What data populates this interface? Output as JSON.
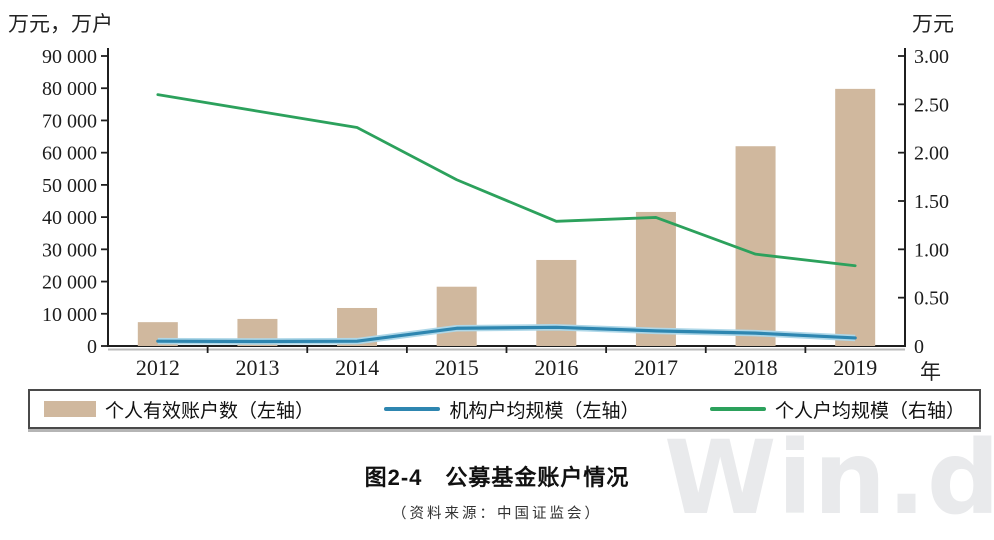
{
  "watermark": "Win.d",
  "caption": {
    "title": "图2-4　公募基金账户情况",
    "source": "（资料来源：中国证监会）"
  },
  "axes": {
    "left_unit_label": "万元，万户",
    "right_unit_label": "万元",
    "x_unit_label": "年",
    "left_ticks": [
      "90 000",
      "80 000",
      "70 000",
      "60 000",
      "50 000",
      "40 000",
      "30 000",
      "20 000",
      "10 000",
      "0"
    ],
    "right_ticks": [
      "3.00",
      "2.50",
      "2.00",
      "1.50",
      "1.00",
      "0.50",
      "0"
    ]
  },
  "legend": [
    {
      "label": "个人有效账户数（左轴）",
      "swatch": "bar",
      "color": "#d0b89e"
    },
    {
      "label": "机构户均规模（左轴）",
      "swatch": "line",
      "color": "#2e86b0"
    },
    {
      "label": "个人户均规模（右轴）",
      "swatch": "line",
      "color": "#2ca15c"
    }
  ],
  "chart_data": {
    "type": "bar",
    "subtype": "combo-bar-line-dual-axis",
    "title": "图2-4 公募基金账户情况",
    "categories": [
      "2012",
      "2013",
      "2014",
      "2015",
      "2016",
      "2017",
      "2018",
      "2019"
    ],
    "series": [
      {
        "name": "个人有效账户数（左轴）",
        "type": "bar",
        "axis": "left",
        "color": "#d0b89e",
        "values": [
          7400,
          8400,
          11800,
          18400,
          26700,
          41600,
          62000,
          79800
        ]
      },
      {
        "name": "机构户均规模（左轴）",
        "type": "line",
        "axis": "left",
        "color": "#2e86b0",
        "values": [
          1500,
          1400,
          1500,
          5500,
          5800,
          4700,
          4000,
          2500
        ]
      },
      {
        "name": "个人户均规模（右轴）",
        "type": "line",
        "axis": "right",
        "color": "#2ca15c",
        "values": [
          2.6,
          2.43,
          2.26,
          1.72,
          1.29,
          1.33,
          0.95,
          0.83
        ]
      }
    ],
    "xlabel": "年",
    "ylabel_left": "万元，万户",
    "ylabel_right": "万元",
    "left_ylim": [
      0,
      90000
    ],
    "right_ylim": [
      0,
      3.0
    ],
    "grid": false,
    "legend_position": "bottom-box"
  }
}
